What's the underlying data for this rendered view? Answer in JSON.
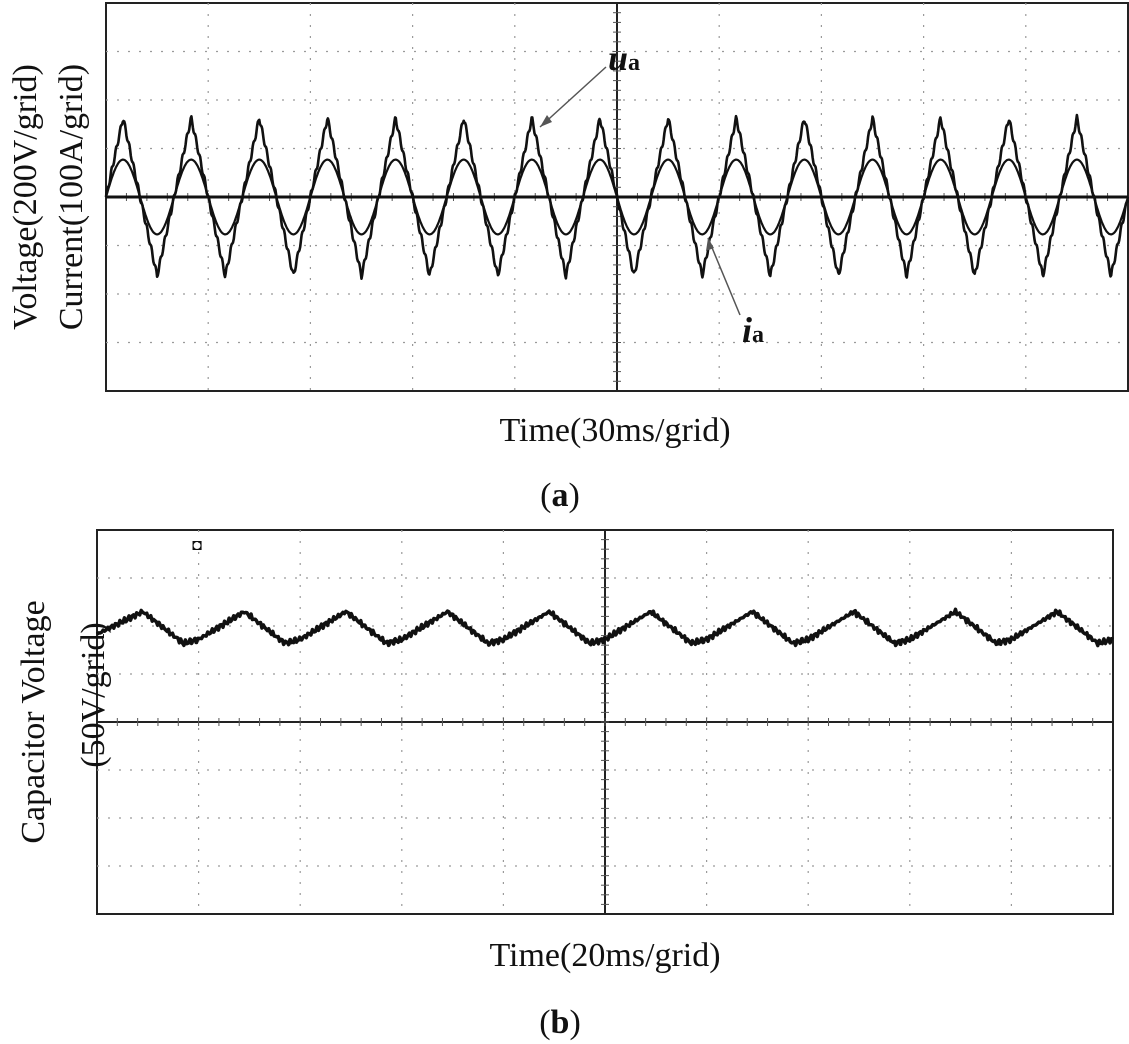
{
  "chart_data": [
    {
      "type": "line",
      "panel_label": "a",
      "xlabel": "Time(30ms/grid)",
      "ylabel": [
        "Voltage(200V/grid)",
        "Current(100A/grid)"
      ],
      "grid": true,
      "xlim": [
        0,
        300
      ],
      "ylim": [
        -2.7,
        2.7
      ],
      "x_units": "ms",
      "y_units": "grid divisions",
      "series": [
        {
          "name": "u",
          "label_subscript": "a",
          "waveform": "triangular",
          "period": 20,
          "amplitude": 1.1,
          "phase_at_zero": 0.0,
          "peaks_x": [
            5,
            25,
            45,
            65,
            85,
            105,
            125,
            145,
            165,
            185,
            205,
            225,
            245,
            265,
            285
          ],
          "troughs_x": [
            15,
            35,
            55,
            75,
            95,
            115,
            135,
            155,
            175,
            195,
            215,
            235,
            255,
            275,
            295
          ]
        },
        {
          "name": "i",
          "label_subscript": "a",
          "waveform": "sinusoidal",
          "period": 20,
          "amplitude": 0.52,
          "phase_at_zero": 0.0,
          "peaks_x": [
            5,
            25,
            45,
            65,
            85,
            105,
            125,
            145,
            165,
            185,
            205,
            225,
            245,
            265,
            285
          ],
          "troughs_x": [
            15,
            35,
            55,
            75,
            95,
            115,
            135,
            155,
            175,
            195,
            215,
            235,
            255,
            275,
            295
          ]
        }
      ]
    },
    {
      "type": "line",
      "panel_label": "b",
      "xlabel": "Time(20ms/grid)",
      "ylabel": [
        "Capacitor Voltage",
        "(50V/grid)"
      ],
      "grid": true,
      "xlim": [
        0,
        200
      ],
      "ylim": [
        -4,
        4
      ],
      "x_units": "ms",
      "y_units": "grid divisions",
      "series": [
        {
          "name": "",
          "waveform": "sawtooth",
          "period": 20,
          "offset": 1.83,
          "amplitude": 0.45,
          "x": [
            0,
            9,
            17,
            20,
            29,
            37,
            40,
            49,
            57,
            60,
            69,
            77,
            80,
            89,
            97,
            100,
            109,
            117,
            120,
            129,
            137,
            140,
            149,
            157,
            160,
            169,
            177,
            180,
            189,
            197,
            200
          ],
          "y": [
            1.83,
            2.3,
            1.64,
            1.72,
            2.3,
            1.64,
            1.72,
            2.3,
            1.64,
            1.72,
            2.3,
            1.64,
            1.72,
            2.3,
            1.64,
            1.72,
            2.3,
            1.64,
            1.72,
            2.3,
            1.64,
            1.72,
            2.3,
            1.64,
            1.72,
            2.3,
            1.64,
            1.72,
            2.3,
            1.64,
            1.72
          ]
        }
      ]
    }
  ]
}
